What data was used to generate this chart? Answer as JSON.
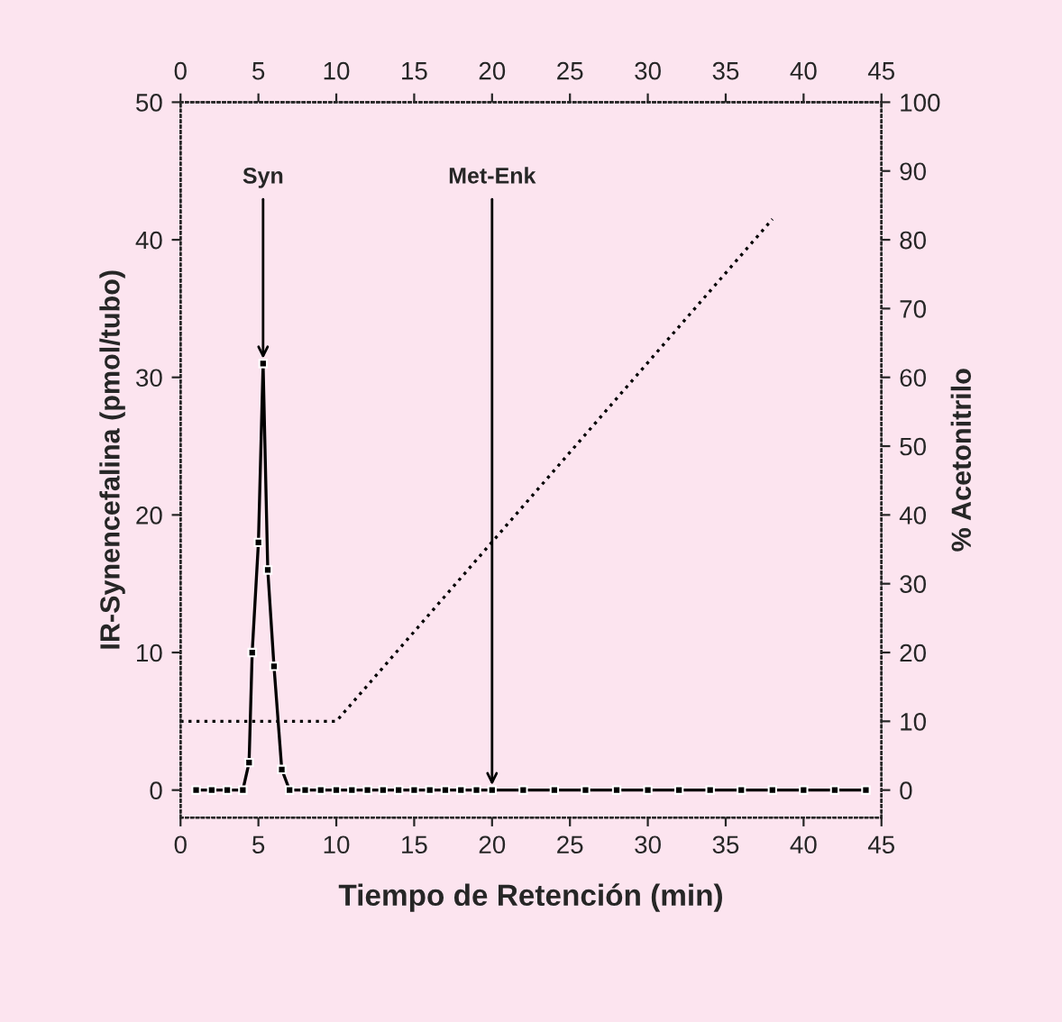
{
  "chart_data": {
    "type": "line",
    "xlabel": "Tiempo de Retención (min)",
    "ylabel": "IR-Synencefalina (pmol/tubo)",
    "y2label": "% Acetonitrilo",
    "xlim": [
      0,
      45
    ],
    "xticks": [
      0,
      5,
      10,
      15,
      20,
      25,
      30,
      35,
      40,
      45
    ],
    "x2lim": [
      0,
      45
    ],
    "x2ticks": [
      0,
      5,
      10,
      15,
      20,
      25,
      30,
      35,
      40,
      45
    ],
    "ylim": [
      -2,
      50
    ],
    "yticks": [
      0,
      10,
      20,
      30,
      40,
      50
    ],
    "y2lim": [
      -4,
      100
    ],
    "y2ticks": [
      0,
      10,
      20,
      30,
      40,
      50,
      60,
      70,
      80,
      90,
      100
    ],
    "grid": false,
    "legend": false,
    "series": [
      {
        "color": "#000000",
        "marker": "square",
        "line_style": "solid",
        "x": [
          1,
          2,
          3,
          4,
          4.4,
          4.6,
          5.0,
          5.3,
          5.6,
          6.0,
          6.5,
          7,
          8,
          9,
          10,
          11,
          12,
          13,
          14,
          15,
          16,
          17,
          18,
          19,
          20,
          22,
          24,
          26,
          28,
          30,
          32,
          34,
          36,
          38,
          40,
          42,
          44
        ],
        "values": [
          0,
          0,
          0,
          0,
          2,
          10,
          18,
          31,
          16,
          9,
          1.5,
          0,
          0,
          0,
          0,
          0,
          0,
          0,
          0,
          0,
          0,
          0,
          0,
          0,
          0,
          0,
          0,
          0,
          0,
          0,
          0,
          0,
          0,
          0,
          0,
          0,
          0
        ]
      },
      {
        "color": "#000000",
        "marker": "none",
        "line_style": "dotted",
        "axis": "y2",
        "x": [
          0,
          4.5,
          10,
          38
        ],
        "values": [
          10,
          10,
          10,
          83
        ]
      }
    ],
    "annotations": [
      {
        "text": "Syn",
        "x": 5.3,
        "y": 31
      },
      {
        "text": "Met-Enk",
        "x": 20,
        "y": 0
      }
    ]
  }
}
